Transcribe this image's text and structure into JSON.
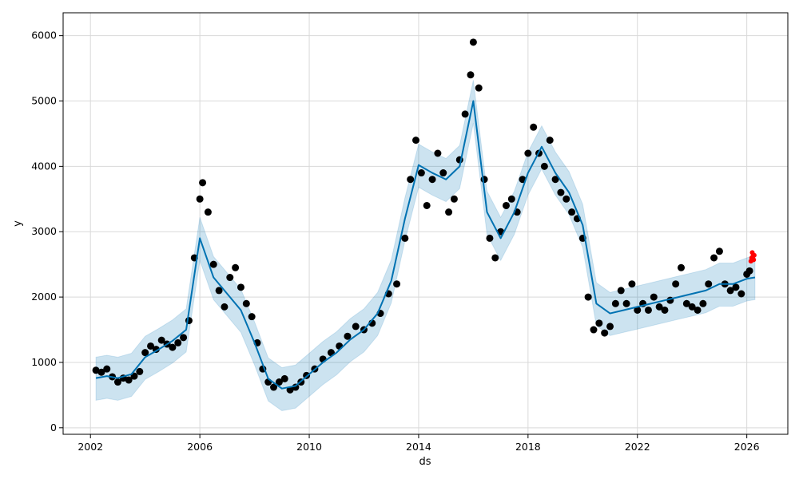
{
  "chart_data": {
    "type": "line",
    "title": "",
    "xlabel": "ds",
    "ylabel": "y",
    "x_axis": {
      "unit": "year",
      "range": [
        2001.0,
        2027.5
      ],
      "ticks": [
        2002,
        2006,
        2010,
        2014,
        2018,
        2022,
        2026
      ],
      "tick_labels": [
        "2002",
        "2006",
        "2010",
        "2014",
        "2018",
        "2022",
        "2026"
      ]
    },
    "y_axis": {
      "range": [
        -100,
        6350
      ],
      "ticks": [
        0,
        1000,
        2000,
        3000,
        4000,
        5000,
        6000
      ],
      "tick_labels": [
        "0",
        "1000",
        "2000",
        "3000",
        "4000",
        "5000",
        "6000"
      ]
    },
    "grid": true,
    "series": [
      {
        "kind": "observed",
        "marker": "dot",
        "color": "#000000",
        "points": [
          [
            2002.2,
            880
          ],
          [
            2002.4,
            850
          ],
          [
            2002.6,
            900
          ],
          [
            2002.8,
            780
          ],
          [
            2003.0,
            700
          ],
          [
            2003.2,
            760
          ],
          [
            2003.4,
            730
          ],
          [
            2003.6,
            790
          ],
          [
            2003.8,
            860
          ],
          [
            2004.0,
            1150
          ],
          [
            2004.2,
            1250
          ],
          [
            2004.4,
            1200
          ],
          [
            2004.6,
            1340
          ],
          [
            2004.8,
            1280
          ],
          [
            2005.0,
            1230
          ],
          [
            2005.2,
            1300
          ],
          [
            2005.4,
            1380
          ],
          [
            2005.6,
            1640
          ],
          [
            2005.8,
            2600
          ],
          [
            2006.0,
            3500
          ],
          [
            2006.1,
            3750
          ],
          [
            2006.3,
            3300
          ],
          [
            2006.5,
            2500
          ],
          [
            2006.7,
            2100
          ],
          [
            2006.9,
            1850
          ],
          [
            2007.1,
            2300
          ],
          [
            2007.3,
            2450
          ],
          [
            2007.5,
            2150
          ],
          [
            2007.7,
            1900
          ],
          [
            2007.9,
            1700
          ],
          [
            2008.1,
            1300
          ],
          [
            2008.3,
            900
          ],
          [
            2008.5,
            700
          ],
          [
            2008.7,
            620
          ],
          [
            2008.9,
            700
          ],
          [
            2009.1,
            750
          ],
          [
            2009.3,
            580
          ],
          [
            2009.5,
            620
          ],
          [
            2009.7,
            700
          ],
          [
            2009.9,
            800
          ],
          [
            2010.2,
            900
          ],
          [
            2010.5,
            1050
          ],
          [
            2010.8,
            1150
          ],
          [
            2011.1,
            1250
          ],
          [
            2011.4,
            1400
          ],
          [
            2011.7,
            1550
          ],
          [
            2012.0,
            1500
          ],
          [
            2012.3,
            1600
          ],
          [
            2012.6,
            1750
          ],
          [
            2012.9,
            2050
          ],
          [
            2013.2,
            2200
          ],
          [
            2013.5,
            2900
          ],
          [
            2013.7,
            3800
          ],
          [
            2013.9,
            4400
          ],
          [
            2014.1,
            3900
          ],
          [
            2014.3,
            3400
          ],
          [
            2014.5,
            3800
          ],
          [
            2014.7,
            4200
          ],
          [
            2014.9,
            3900
          ],
          [
            2015.1,
            3300
          ],
          [
            2015.3,
            3500
          ],
          [
            2015.5,
            4100
          ],
          [
            2015.7,
            4800
          ],
          [
            2015.9,
            5400
          ],
          [
            2016.0,
            5900
          ],
          [
            2016.2,
            5200
          ],
          [
            2016.4,
            3800
          ],
          [
            2016.6,
            2900
          ],
          [
            2016.8,
            2600
          ],
          [
            2017.0,
            3000
          ],
          [
            2017.2,
            3400
          ],
          [
            2017.4,
            3500
          ],
          [
            2017.6,
            3300
          ],
          [
            2017.8,
            3800
          ],
          [
            2018.0,
            4200
          ],
          [
            2018.2,
            4600
          ],
          [
            2018.4,
            4200
          ],
          [
            2018.6,
            4000
          ],
          [
            2018.8,
            4400
          ],
          [
            2019.0,
            3800
          ],
          [
            2019.2,
            3600
          ],
          [
            2019.4,
            3500
          ],
          [
            2019.6,
            3300
          ],
          [
            2019.8,
            3200
          ],
          [
            2020.0,
            2900
          ],
          [
            2020.2,
            2000
          ],
          [
            2020.4,
            1500
          ],
          [
            2020.6,
            1600
          ],
          [
            2020.8,
            1450
          ],
          [
            2021.0,
            1550
          ],
          [
            2021.2,
            1900
          ],
          [
            2021.4,
            2100
          ],
          [
            2021.6,
            1900
          ],
          [
            2021.8,
            2200
          ],
          [
            2022.0,
            1800
          ],
          [
            2022.2,
            1900
          ],
          [
            2022.4,
            1800
          ],
          [
            2022.6,
            2000
          ],
          [
            2022.8,
            1850
          ],
          [
            2023.0,
            1800
          ],
          [
            2023.2,
            1950
          ],
          [
            2023.4,
            2200
          ],
          [
            2023.6,
            2450
          ],
          [
            2023.8,
            1900
          ],
          [
            2024.0,
            1850
          ],
          [
            2024.2,
            1800
          ],
          [
            2024.4,
            1900
          ],
          [
            2024.6,
            2200
          ],
          [
            2024.8,
            2600
          ],
          [
            2025.0,
            2700
          ],
          [
            2025.2,
            2200
          ],
          [
            2025.4,
            2100
          ],
          [
            2025.6,
            2150
          ],
          [
            2025.8,
            2050
          ],
          [
            2026.0,
            2350
          ],
          [
            2026.1,
            2400
          ]
        ]
      },
      {
        "kind": "forecast",
        "marker": "line",
        "color": "#0072B2",
        "points": [
          [
            2002.2,
            760
          ],
          [
            2002.6,
            790
          ],
          [
            2003.0,
            760
          ],
          [
            2003.5,
            820
          ],
          [
            2004.0,
            1080
          ],
          [
            2004.5,
            1200
          ],
          [
            2005.0,
            1330
          ],
          [
            2005.5,
            1500
          ],
          [
            2006.0,
            2900
          ],
          [
            2006.5,
            2300
          ],
          [
            2007.0,
            2050
          ],
          [
            2007.5,
            1800
          ],
          [
            2008.0,
            1300
          ],
          [
            2008.5,
            750
          ],
          [
            2009.0,
            600
          ],
          [
            2009.5,
            640
          ],
          [
            2010.0,
            820
          ],
          [
            2010.5,
            1000
          ],
          [
            2011.0,
            1150
          ],
          [
            2011.5,
            1350
          ],
          [
            2012.0,
            1500
          ],
          [
            2012.5,
            1750
          ],
          [
            2013.0,
            2250
          ],
          [
            2013.5,
            3200
          ],
          [
            2014.0,
            4020
          ],
          [
            2014.5,
            3900
          ],
          [
            2015.0,
            3800
          ],
          [
            2015.5,
            4000
          ],
          [
            2016.0,
            5000
          ],
          [
            2016.5,
            3300
          ],
          [
            2017.0,
            2900
          ],
          [
            2017.5,
            3300
          ],
          [
            2018.0,
            3900
          ],
          [
            2018.5,
            4300
          ],
          [
            2019.0,
            3900
          ],
          [
            2019.5,
            3600
          ],
          [
            2020.0,
            3100
          ],
          [
            2020.5,
            1900
          ],
          [
            2021.0,
            1750
          ],
          [
            2021.5,
            1800
          ],
          [
            2022.0,
            1850
          ],
          [
            2022.5,
            1900
          ],
          [
            2023.0,
            1950
          ],
          [
            2023.5,
            2000
          ],
          [
            2024.0,
            2050
          ],
          [
            2024.5,
            2100
          ],
          [
            2025.0,
            2200
          ],
          [
            2025.5,
            2200
          ],
          [
            2026.0,
            2280
          ],
          [
            2026.3,
            2300
          ]
        ]
      },
      {
        "kind": "uncertainty",
        "color": "#0072B2",
        "upper": [
          [
            2002.2,
            1080
          ],
          [
            2002.6,
            1110
          ],
          [
            2003.0,
            1080
          ],
          [
            2003.5,
            1140
          ],
          [
            2004.0,
            1400
          ],
          [
            2004.5,
            1520
          ],
          [
            2005.0,
            1650
          ],
          [
            2005.5,
            1820
          ],
          [
            2006.0,
            3220
          ],
          [
            2006.5,
            2620
          ],
          [
            2007.0,
            2370
          ],
          [
            2007.5,
            2120
          ],
          [
            2008.0,
            1620
          ],
          [
            2008.5,
            1070
          ],
          [
            2009.0,
            920
          ],
          [
            2009.5,
            960
          ],
          [
            2010.0,
            1140
          ],
          [
            2010.5,
            1320
          ],
          [
            2011.0,
            1470
          ],
          [
            2011.5,
            1670
          ],
          [
            2012.0,
            1820
          ],
          [
            2012.5,
            2070
          ],
          [
            2013.0,
            2570
          ],
          [
            2013.5,
            3520
          ],
          [
            2014.0,
            4340
          ],
          [
            2014.5,
            4220
          ],
          [
            2015.0,
            4120
          ],
          [
            2015.5,
            4320
          ],
          [
            2016.0,
            5320
          ],
          [
            2016.5,
            3620
          ],
          [
            2017.0,
            3220
          ],
          [
            2017.5,
            3620
          ],
          [
            2018.0,
            4220
          ],
          [
            2018.5,
            4620
          ],
          [
            2019.0,
            4220
          ],
          [
            2019.5,
            3920
          ],
          [
            2020.0,
            3420
          ],
          [
            2020.5,
            2220
          ],
          [
            2021.0,
            2070
          ],
          [
            2021.5,
            2120
          ],
          [
            2022.0,
            2170
          ],
          [
            2022.5,
            2220
          ],
          [
            2023.0,
            2270
          ],
          [
            2023.5,
            2320
          ],
          [
            2024.0,
            2370
          ],
          [
            2024.5,
            2420
          ],
          [
            2025.0,
            2520
          ],
          [
            2025.5,
            2520
          ],
          [
            2026.0,
            2600
          ],
          [
            2026.3,
            2640
          ]
        ],
        "lower": [
          [
            2002.2,
            420
          ],
          [
            2002.6,
            450
          ],
          [
            2003.0,
            420
          ],
          [
            2003.5,
            480
          ],
          [
            2004.0,
            740
          ],
          [
            2004.5,
            860
          ],
          [
            2005.0,
            990
          ],
          [
            2005.5,
            1160
          ],
          [
            2006.0,
            2560
          ],
          [
            2006.5,
            1960
          ],
          [
            2007.0,
            1710
          ],
          [
            2007.5,
            1460
          ],
          [
            2008.0,
            960
          ],
          [
            2008.5,
            410
          ],
          [
            2009.0,
            260
          ],
          [
            2009.5,
            300
          ],
          [
            2010.0,
            480
          ],
          [
            2010.5,
            660
          ],
          [
            2011.0,
            810
          ],
          [
            2011.5,
            1010
          ],
          [
            2012.0,
            1160
          ],
          [
            2012.5,
            1410
          ],
          [
            2013.0,
            1910
          ],
          [
            2013.5,
            2860
          ],
          [
            2014.0,
            3680
          ],
          [
            2014.5,
            3560
          ],
          [
            2015.0,
            3460
          ],
          [
            2015.5,
            3660
          ],
          [
            2016.0,
            4660
          ],
          [
            2016.5,
            2960
          ],
          [
            2017.0,
            2560
          ],
          [
            2017.5,
            2960
          ],
          [
            2018.0,
            3560
          ],
          [
            2018.5,
            3960
          ],
          [
            2019.0,
            3560
          ],
          [
            2019.5,
            3260
          ],
          [
            2020.0,
            2760
          ],
          [
            2020.5,
            1560
          ],
          [
            2021.0,
            1410
          ],
          [
            2021.5,
            1460
          ],
          [
            2022.0,
            1510
          ],
          [
            2022.5,
            1560
          ],
          [
            2023.0,
            1610
          ],
          [
            2023.5,
            1660
          ],
          [
            2024.0,
            1710
          ],
          [
            2024.5,
            1760
          ],
          [
            2025.0,
            1860
          ],
          [
            2025.5,
            1860
          ],
          [
            2026.0,
            1940
          ],
          [
            2026.3,
            1960
          ]
        ]
      },
      {
        "kind": "recent-observed",
        "marker": "dot",
        "color": "#ff0000",
        "points": [
          [
            2026.15,
            2550
          ],
          [
            2026.18,
            2600
          ],
          [
            2026.2,
            2680
          ],
          [
            2026.22,
            2620
          ],
          [
            2026.25,
            2570
          ],
          [
            2026.27,
            2640
          ]
        ]
      }
    ]
  }
}
